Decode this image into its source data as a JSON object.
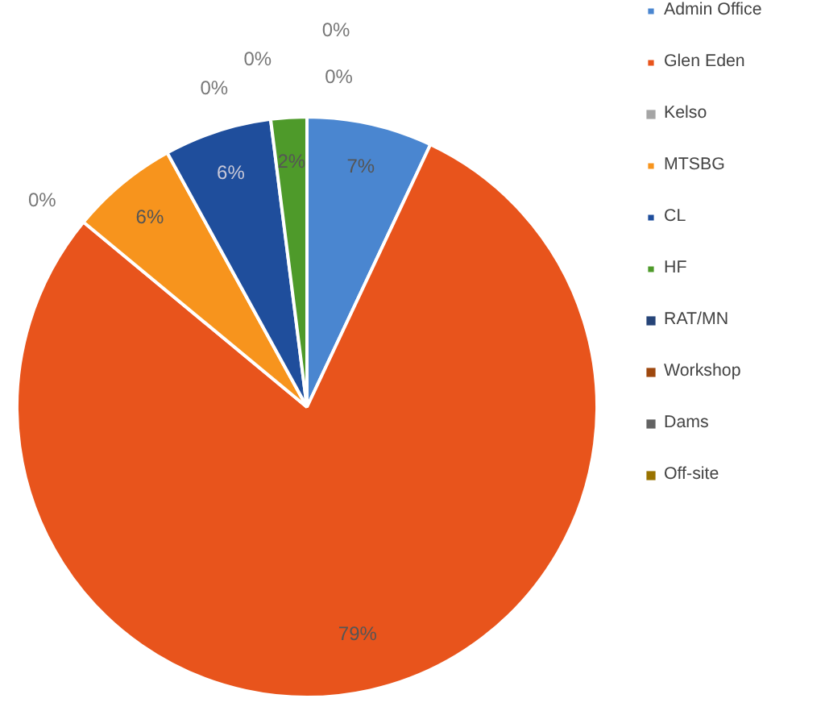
{
  "chart_data": {
    "type": "pie",
    "categories": [
      "Admin Office",
      "Glen Eden",
      "Kelso",
      "MTSBG",
      "CL",
      "HF",
      "RAT/MN",
      "Workshop",
      "Dams",
      "Off-site"
    ],
    "values": [
      7,
      79,
      0,
      6,
      6,
      2,
      0,
      0,
      0,
      0
    ],
    "value_labels": [
      "7%",
      "79%",
      "0%",
      "6%",
      "6%",
      "2%",
      "0%",
      "0%",
      "0%",
      "0%"
    ],
    "colors": [
      "#4a86d0",
      "#e8541c",
      "#a5a5a5",
      "#f7941d",
      "#1f4e9c",
      "#4e9a2a",
      "#264478",
      "#9e480e",
      "#636363",
      "#997300"
    ],
    "legend": "right"
  }
}
